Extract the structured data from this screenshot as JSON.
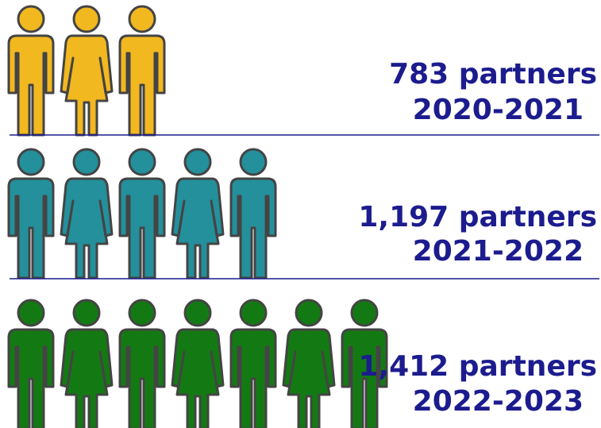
{
  "rows": [
    {
      "label": "783 partners",
      "period": "2020-2021",
      "icons": 3,
      "color": "#f2b81f"
    },
    {
      "label": "1,197 partners",
      "period": "2021-2022",
      "icons": 5,
      "color": "#23909c"
    },
    {
      "label": "1,412 partners",
      "period": "2022-2023",
      "icons": 7,
      "color": "#137a13"
    }
  ]
}
